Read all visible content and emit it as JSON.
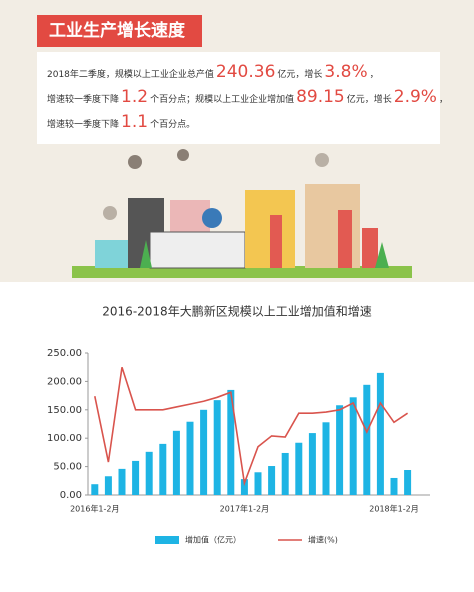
{
  "header": {
    "title": "工业生产增长速度",
    "lines": [
      [
        "2018年二季度，规模以上工业企业总产值",
        "240.36",
        "亿元，增长",
        "3.8%",
        "，"
      ],
      [
        "增速较一季度下降",
        "1.2",
        "个百分点；规模以上工业企业增加值",
        "89.15",
        "亿元，增长",
        "2.9%",
        "，"
      ],
      [
        "增速较一季度下降",
        "1.1",
        "个百分点。"
      ]
    ]
  },
  "chart_data": {
    "type": "bar",
    "title": "2016-2018年大鹏新区规模以上工业增加值和增速",
    "categories": [
      "2016年1-2月",
      null,
      null,
      null,
      null,
      null,
      null,
      null,
      null,
      null,
      null,
      "2017年1-2月",
      null,
      null,
      null,
      null,
      null,
      null,
      null,
      null,
      null,
      null,
      "2018年1-2月",
      null
    ],
    "series": [
      {
        "name": "增加值（亿元）",
        "type": "bar",
        "color": "#1eb4e4",
        "values": [
          19,
          33,
          46,
          60,
          76,
          90,
          113,
          129,
          150,
          167,
          185,
          28,
          40,
          51,
          74,
          92,
          109,
          128,
          158,
          172,
          194,
          215,
          30,
          44
        ]
      },
      {
        "name": "增速(%)",
        "type": "line",
        "color": "#d9544d",
        "values": [
          174,
          58,
          225,
          150,
          150,
          150,
          155,
          160,
          165,
          172,
          181,
          21,
          85,
          104,
          102,
          144,
          144,
          146,
          150,
          162,
          111,
          162,
          128,
          144
        ]
      }
    ],
    "ylim": [
      0,
      250
    ],
    "yticks": [
      {
        "value": 0,
        "label": "0.00"
      },
      {
        "value": 50,
        "label": "50.00"
      },
      {
        "value": 100,
        "label": "100.00"
      },
      {
        "value": 150,
        "label": "150.00"
      },
      {
        "value": 200,
        "label": "200.00"
      },
      {
        "value": 250,
        "label": "250.00"
      }
    ],
    "grid": false
  }
}
